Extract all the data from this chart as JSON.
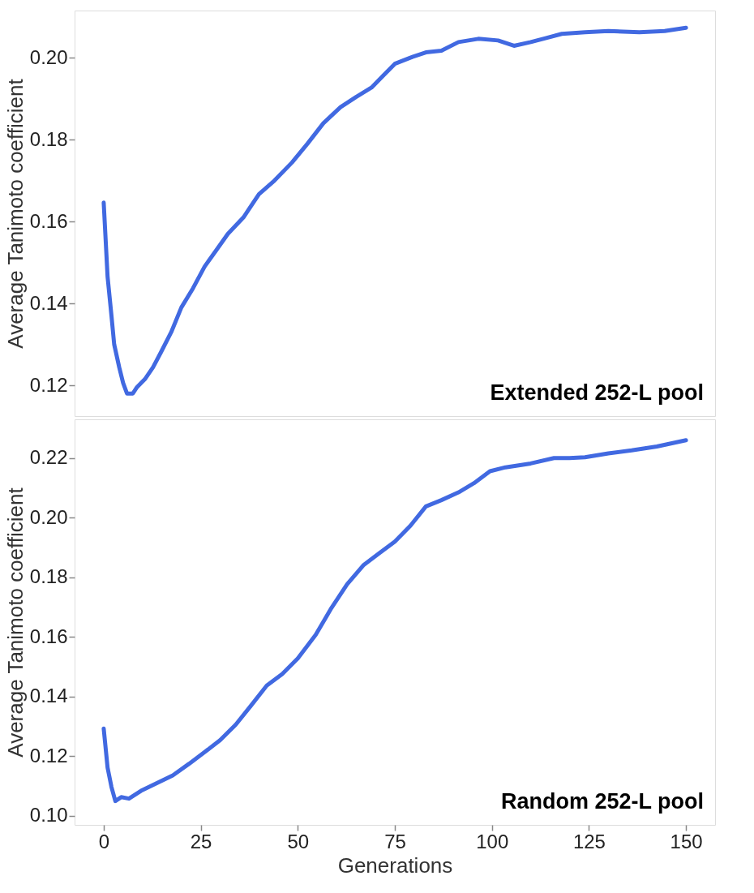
{
  "chart_data": [
    {
      "type": "line",
      "ylabel": "Average Tanimoto coefficient",
      "annotations": [
        "Extended 252-L pool"
      ],
      "tick_labels": "y",
      "grid": false,
      "marker": "none",
      "line_style": "solid",
      "xlim": [
        -7.5,
        157.5
      ],
      "xticks": [
        0,
        25,
        50,
        75,
        100,
        125,
        150
      ],
      "ylim": [
        0.1125,
        0.2115
      ],
      "yticks": [
        {
          "value": 0.12,
          "label": "0.12"
        },
        {
          "value": 0.14,
          "label": "0.14"
        },
        {
          "value": 0.16,
          "label": "0.16"
        },
        {
          "value": 0.18,
          "label": "0.18"
        },
        {
          "value": 0.2,
          "label": "0.20"
        }
      ],
      "series": [
        {
          "color": "#4169e1",
          "x": [
            0,
            1,
            2,
            2.7,
            4,
            5,
            6,
            7.5,
            8.6,
            10.6,
            12.7,
            14.7,
            17.4,
            20,
            23,
            26,
            29,
            32,
            36,
            40,
            44,
            48.5,
            52.5,
            56.6,
            61,
            65,
            69,
            72,
            75,
            79,
            83,
            87,
            91.4,
            96.5,
            101.6,
            105.7,
            110,
            114,
            118,
            124,
            130,
            138,
            144.5,
            150
          ],
          "values": [
            0.1646,
            0.1465,
            0.137,
            0.13,
            0.1244,
            0.1206,
            0.118,
            0.118,
            0.1196,
            0.1215,
            0.1244,
            0.128,
            0.133,
            0.139,
            0.1437,
            0.149,
            0.153,
            0.157,
            0.161,
            0.1667,
            0.17,
            0.1744,
            0.179,
            0.184,
            0.1879,
            0.1904,
            0.1927,
            0.1956,
            0.1985,
            0.2,
            0.2013,
            0.2017,
            0.2038,
            0.2046,
            0.2042,
            0.2029,
            0.2038,
            0.2048,
            0.2058,
            0.2062,
            0.2065,
            0.2062,
            0.2065,
            0.2073
          ]
        }
      ]
    },
    {
      "type": "line",
      "xlabel": "Generations",
      "ylabel": "Average Tanimoto coefficient",
      "annotations": [
        "Random 252-L pool"
      ],
      "grid": false,
      "marker": "none",
      "line_style": "solid",
      "xlim": [
        -7.5,
        157.5
      ],
      "xticks": [
        0,
        25,
        50,
        75,
        100,
        125,
        150
      ],
      "ylim": [
        0.097,
        0.233
      ],
      "yticks": [
        {
          "value": 0.1,
          "label": "0.10"
        },
        {
          "value": 0.12,
          "label": "0.12"
        },
        {
          "value": 0.14,
          "label": "0.14"
        },
        {
          "value": 0.16,
          "label": "0.16"
        },
        {
          "value": 0.18,
          "label": "0.18"
        },
        {
          "value": 0.2,
          "label": "0.20"
        },
        {
          "value": 0.22,
          "label": "0.22"
        }
      ],
      "series": [
        {
          "color": "#4169e1",
          "x": [
            0,
            1,
            2,
            3,
            4.5,
            6.5,
            9.6,
            13.7,
            17.8,
            22,
            26,
            30,
            34,
            38,
            42,
            46,
            50,
            54.6,
            58.7,
            62.7,
            67,
            71,
            75,
            79,
            83,
            87,
            91.4,
            95.4,
            99.5,
            103.5,
            110,
            116,
            120,
            124,
            130,
            136,
            142.5,
            150
          ],
          "values": [
            0.1293,
            0.1162,
            0.1097,
            0.105,
            0.1063,
            0.1058,
            0.1084,
            0.111,
            0.1136,
            0.1175,
            0.1214,
            0.1254,
            0.1306,
            0.1371,
            0.1437,
            0.1476,
            0.1528,
            0.1607,
            0.1698,
            0.1777,
            0.1842,
            0.1881,
            0.192,
            0.1973,
            0.2038,
            0.2059,
            0.2085,
            0.2116,
            0.2156,
            0.2169,
            0.2182,
            0.22,
            0.22,
            0.2203,
            0.2216,
            0.2226,
            0.2239,
            0.226
          ]
        }
      ]
    }
  ]
}
